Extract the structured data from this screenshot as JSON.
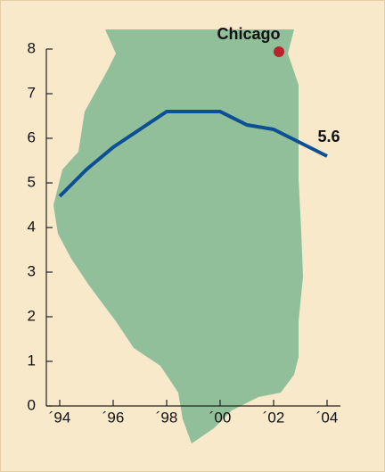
{
  "chart_data": {
    "type": "line",
    "x": [
      1994,
      1995,
      1996,
      1997,
      1998,
      1999,
      2000,
      2001,
      2002,
      2003,
      2004
    ],
    "values": [
      4.7,
      5.3,
      5.8,
      6.2,
      6.6,
      6.6,
      6.6,
      6.3,
      6.2,
      5.9,
      5.6
    ],
    "color": "#0d4f94",
    "xlim": [
      1993.5,
      2004.5
    ],
    "xticks": [
      {
        "value": 1994,
        "label": "´94"
      },
      {
        "value": 1996,
        "label": "´96"
      },
      {
        "value": 1998,
        "label": "´98"
      },
      {
        "value": 2000,
        "label": "´00"
      },
      {
        "value": 2002,
        "label": "´02"
      },
      {
        "value": 2004,
        "label": "´04"
      }
    ],
    "ylim": [
      0,
      8
    ],
    "yticks": [
      0,
      1,
      2,
      3,
      4,
      5,
      6,
      7,
      8
    ],
    "annotations": [
      "Chicago"
    ]
  }
}
